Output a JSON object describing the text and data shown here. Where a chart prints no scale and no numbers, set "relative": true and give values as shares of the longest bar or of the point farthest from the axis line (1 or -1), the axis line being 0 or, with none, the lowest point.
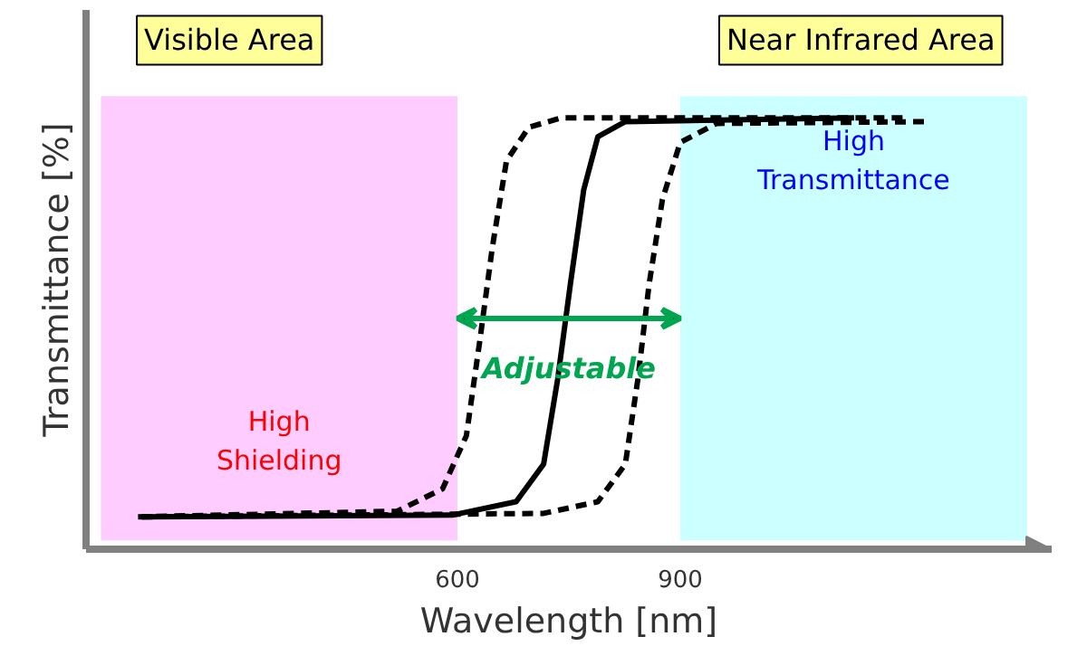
{
  "chart_data": {
    "type": "line",
    "relative": true,
    "xlabel": "Wavelength [nm]",
    "ylabel": "Transmittance [%]",
    "xlim": [
      100,
      1400
    ],
    "xticks": [
      600,
      900
    ],
    "grid": false,
    "series": [
      {
        "color": "#000000",
        "line_style": "dashed",
        "x": [
          170,
          519,
          580,
          612,
          630,
          647,
          666,
          696,
          740,
          1207
        ],
        "values": [
          0.075,
          0.088,
          0.14,
          0.263,
          0.482,
          0.7,
          0.9,
          0.978,
          1.0,
          1.0
        ]
      },
      {
        "color": "#000000",
        "line_style": "solid",
        "x": [
          175,
          593,
          679,
          716,
          735,
          752,
          770,
          789,
          826,
          1134
        ],
        "values": [
          0.075,
          0.079,
          0.11,
          0.197,
          0.395,
          0.614,
          0.833,
          0.956,
          0.991,
          1.0
        ]
      },
      {
        "color": "#000000",
        "line_style": "dashed",
        "x": [
          175,
          716,
          789,
          826,
          843,
          858,
          876,
          900,
          949,
          1232
        ],
        "values": [
          0.075,
          0.083,
          0.11,
          0.197,
          0.395,
          0.614,
          0.811,
          0.943,
          0.987,
          0.991
        ]
      }
    ],
    "bands": [
      {
        "axis": "x",
        "from": 120,
        "to": 600,
        "color": "#ffccff",
        "label": "High\nShielding"
      },
      {
        "axis": "x",
        "from": 900,
        "to": 1367,
        "color": "#ccffff",
        "label": "High\nTransmittance"
      }
    ],
    "annotations": [
      "Visible Area",
      "Near Infrared Area",
      "Adjustable"
    ]
  }
}
